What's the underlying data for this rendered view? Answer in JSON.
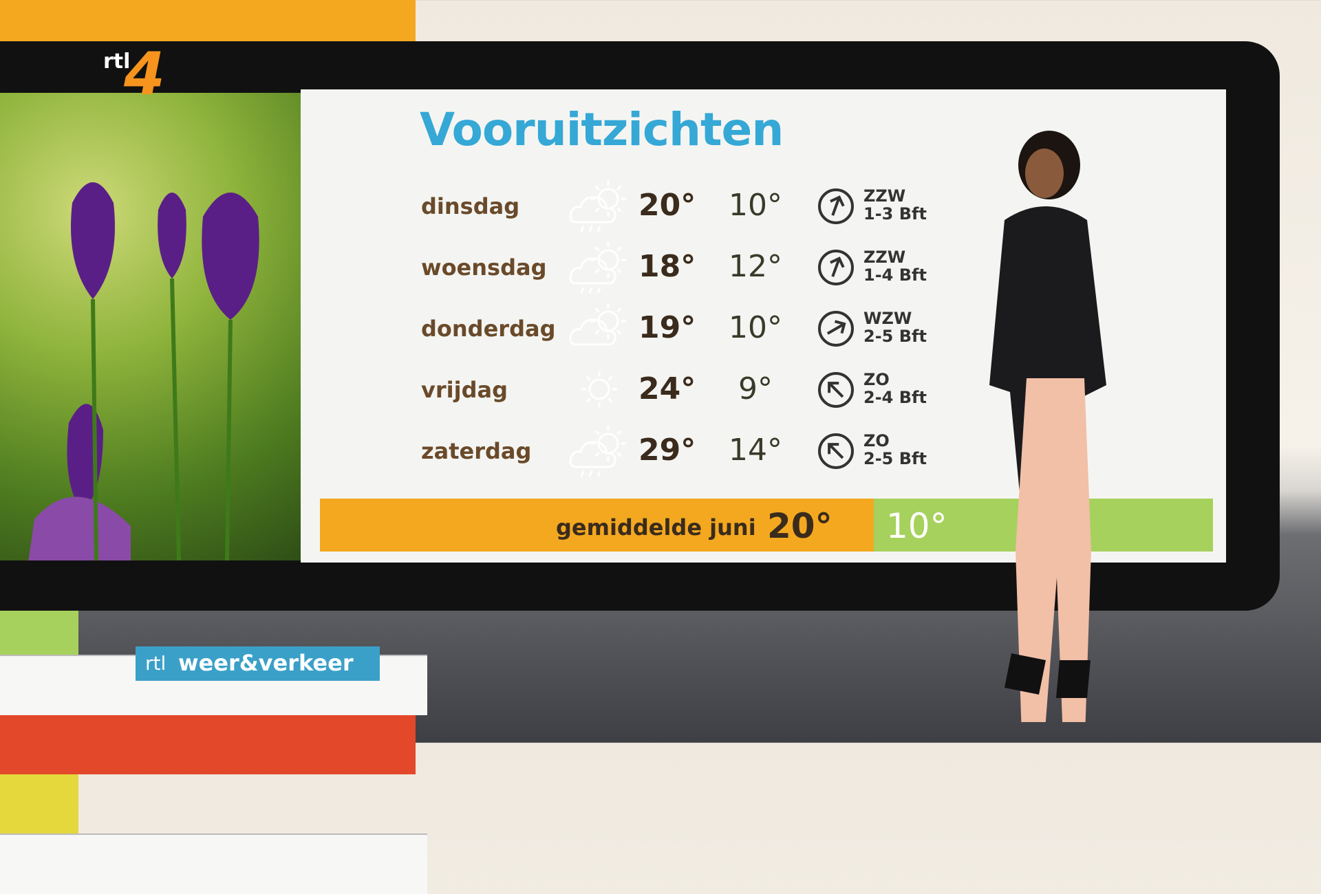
{
  "logo": {
    "channel": "rtl",
    "number": "4"
  },
  "title": "Vooruitzichten",
  "forecast": [
    {
      "day": "dinsdag",
      "max": "20°",
      "min": "10°",
      "wind_direction": "ZZW",
      "wind_force": "1-3 Bft"
    },
    {
      "day": "woensdag",
      "max": "18°",
      "min": "12°",
      "wind_direction": "ZZW",
      "wind_force": "1-4 Bft"
    },
    {
      "day": "donderdag",
      "max": "19°",
      "min": "10°",
      "wind_direction": "WZW",
      "wind_force": "2-5 Bft"
    },
    {
      "day": "vrijdag",
      "max": "24°",
      "min": "9°",
      "wind_direction": "ZO",
      "wind_force": "2-4 Bft"
    },
    {
      "day": "zaterdag",
      "max": "29°",
      "min": "14°",
      "wind_direction": "ZO",
      "wind_force": "2-5 Bft"
    }
  ],
  "average": {
    "label": "gemiddelde juni",
    "max": "20°",
    "min": "10°"
  },
  "brand": {
    "rtl": "rtl",
    "name": "weer&verkeer"
  }
}
